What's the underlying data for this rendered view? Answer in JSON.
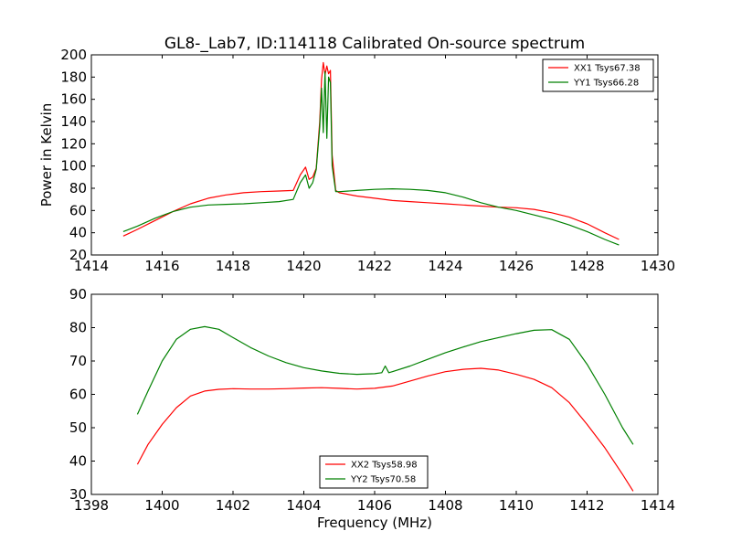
{
  "chart_data": [
    {
      "type": "line",
      "title": "GL8-_Lab7, ID:114118 Calibrated On-source spectrum",
      "xlabel": "",
      "ylabel": "Power in Kelvin",
      "xlim": [
        1414,
        1430
      ],
      "ylim": [
        20,
        200
      ],
      "xticks": [
        1414,
        1416,
        1418,
        1420,
        1422,
        1424,
        1426,
        1428,
        1430
      ],
      "yticks": [
        20,
        40,
        60,
        80,
        100,
        120,
        140,
        160,
        180,
        200
      ],
      "grid": false,
      "legend_position": "top-right",
      "series": [
        {
          "name": "XX1 Tsys67.38",
          "color": "#ff0000",
          "x": [
            1414.9,
            1415.3,
            1415.8,
            1416.3,
            1416.8,
            1417.3,
            1417.8,
            1418.3,
            1418.8,
            1419.3,
            1419.7,
            1419.9,
            1420.05,
            1420.15,
            1420.25,
            1420.35,
            1420.45,
            1420.5,
            1420.55,
            1420.6,
            1420.65,
            1420.7,
            1420.75,
            1420.8,
            1420.9,
            1421.0,
            1421.5,
            1422.0,
            1422.5,
            1423.0,
            1423.5,
            1424.0,
            1424.5,
            1425.0,
            1425.5,
            1426.0,
            1426.5,
            1427.0,
            1427.5,
            1428.0,
            1428.5,
            1428.9
          ],
          "y": [
            37,
            43,
            51,
            59,
            66,
            71,
            74,
            76,
            77,
            77.5,
            78,
            92,
            99,
            88,
            90,
            98,
            140,
            178,
            193,
            182,
            190,
            183,
            186,
            110,
            78,
            76,
            73,
            71,
            69,
            68,
            67,
            66,
            65,
            64,
            63,
            62.5,
            61,
            58,
            54,
            48,
            40,
            34
          ]
        },
        {
          "name": "YY1 Tsys66.28",
          "color": "#008000",
          "x": [
            1414.9,
            1415.3,
            1415.8,
            1416.3,
            1416.8,
            1417.3,
            1417.8,
            1418.3,
            1418.8,
            1419.3,
            1419.7,
            1419.9,
            1420.05,
            1420.15,
            1420.25,
            1420.35,
            1420.45,
            1420.5,
            1420.55,
            1420.6,
            1420.65,
            1420.7,
            1420.75,
            1420.8,
            1420.9,
            1421.0,
            1421.5,
            1422.0,
            1422.5,
            1423.0,
            1423.5,
            1424.0,
            1424.5,
            1425.0,
            1425.5,
            1426.0,
            1426.5,
            1427.0,
            1427.5,
            1428.0,
            1428.5,
            1428.9
          ],
          "y": [
            41,
            46,
            53,
            59,
            63,
            65,
            65.5,
            66,
            67,
            68,
            70,
            85,
            92,
            80,
            85,
            97,
            135,
            170,
            130,
            185,
            125,
            180,
            175,
            100,
            77,
            77,
            78,
            79,
            79.5,
            79,
            78,
            76,
            72,
            67,
            63,
            60,
            56,
            52,
            47,
            41,
            34,
            29
          ]
        }
      ]
    },
    {
      "type": "line",
      "title": "",
      "xlabel": "Frequency (MHz)",
      "ylabel": "",
      "xlim": [
        1398,
        1414
      ],
      "ylim": [
        30,
        90
      ],
      "xticks": [
        1398,
        1400,
        1402,
        1404,
        1406,
        1408,
        1410,
        1412,
        1414
      ],
      "yticks": [
        30,
        40,
        50,
        60,
        70,
        80,
        90
      ],
      "grid": false,
      "legend_position": "bottom-center",
      "series": [
        {
          "name": "XX2 Tsys58.98",
          "color": "#ff0000",
          "x": [
            1399.3,
            1399.6,
            1400.0,
            1400.4,
            1400.8,
            1401.2,
            1401.6,
            1402.0,
            1402.5,
            1403.0,
            1403.5,
            1404.0,
            1404.5,
            1405.0,
            1405.5,
            1406.0,
            1406.5,
            1407.0,
            1407.5,
            1408.0,
            1408.5,
            1409.0,
            1409.5,
            1410.0,
            1410.5,
            1411.0,
            1411.5,
            1412.0,
            1412.5,
            1413.0,
            1413.3
          ],
          "y": [
            39,
            45,
            51,
            56,
            59.5,
            61,
            61.5,
            61.7,
            61.6,
            61.6,
            61.7,
            61.9,
            62,
            61.8,
            61.6,
            61.8,
            62.5,
            64,
            65.5,
            66.8,
            67.5,
            67.8,
            67.3,
            66,
            64.5,
            62,
            57.5,
            51,
            44,
            36,
            31
          ]
        },
        {
          "name": "YY2 Tsys70.58",
          "color": "#008000",
          "x": [
            1399.3,
            1399.6,
            1400.0,
            1400.4,
            1400.8,
            1401.2,
            1401.6,
            1402.0,
            1402.5,
            1403.0,
            1403.5,
            1404.0,
            1404.5,
            1405.0,
            1405.5,
            1406.0,
            1406.2,
            1406.3,
            1406.4,
            1406.5,
            1407.0,
            1407.5,
            1408.0,
            1408.5,
            1409.0,
            1409.5,
            1410.0,
            1410.5,
            1411.0,
            1411.5,
            1412.0,
            1412.5,
            1413.0,
            1413.3
          ],
          "y": [
            54,
            61,
            70,
            76.5,
            79.5,
            80.3,
            79.5,
            77,
            74,
            71.5,
            69.5,
            68,
            67,
            66.3,
            66,
            66.2,
            66.5,
            68.5,
            66.5,
            66.8,
            68.5,
            70.5,
            72.5,
            74.2,
            75.8,
            77,
            78.2,
            79.2,
            79.4,
            76.5,
            69,
            60,
            50,
            45
          ]
        }
      ]
    }
  ]
}
